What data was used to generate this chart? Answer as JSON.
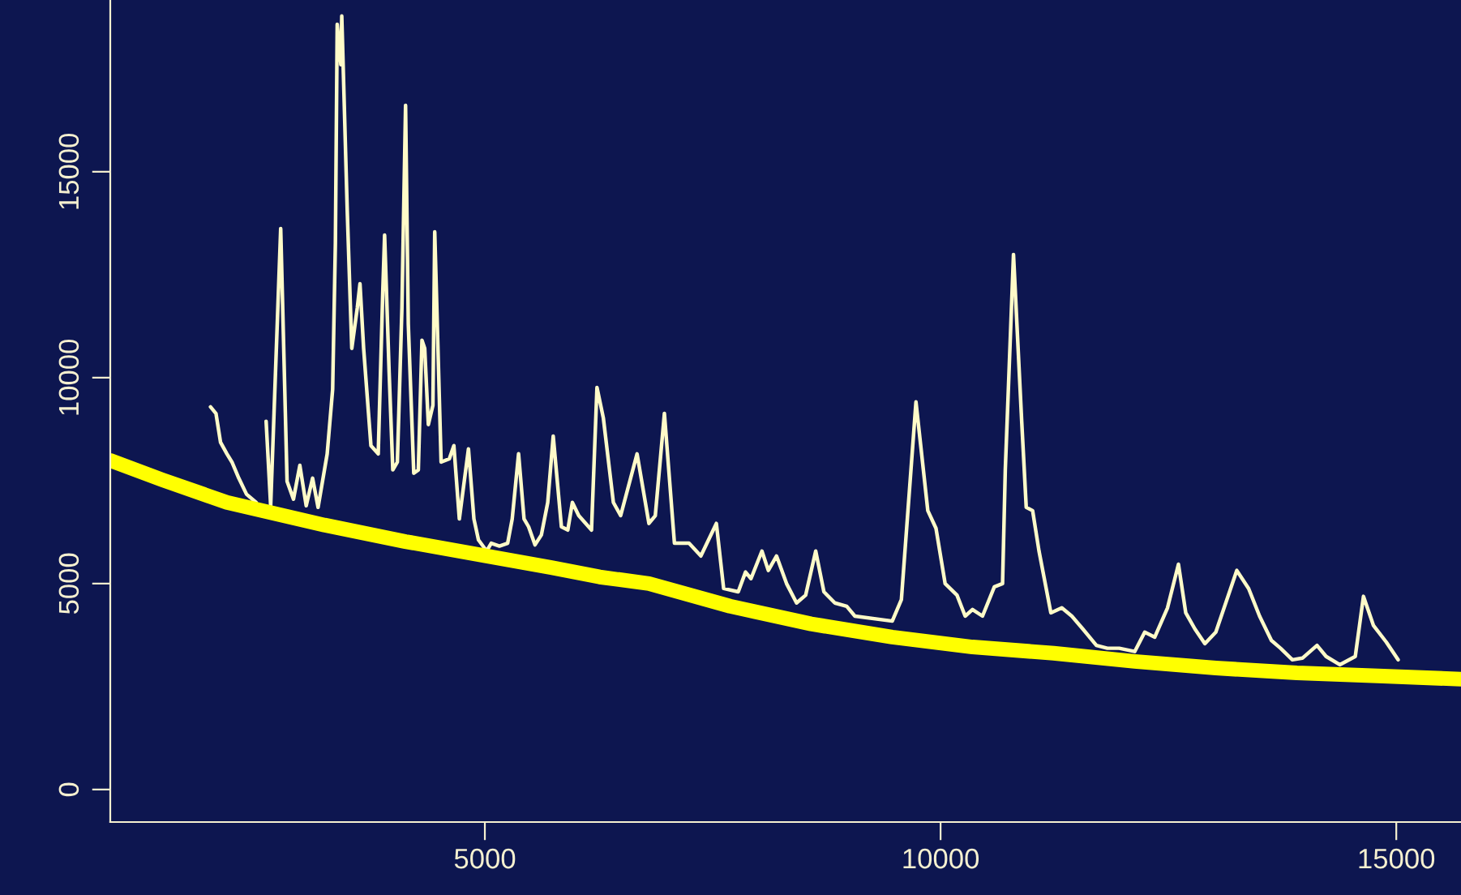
{
  "chart_data": {
    "type": "line",
    "xlim": [
      890,
      15710
    ],
    "ylim": [
      -790,
      19170
    ],
    "xticks": [
      5000,
      10000,
      15000
    ],
    "yticks": [
      0,
      5000,
      10000,
      15000
    ],
    "grid": false,
    "legend": false,
    "series": [
      {
        "color": "#fffbc8",
        "x": [
          1990,
          2050,
          2100,
          2170,
          2225,
          2300,
          2385,
          2490,
          2560,
          2600,
          2650,
          2760,
          2830,
          2900,
          2970,
          3040,
          3110,
          3170,
          3270,
          3330,
          3360,
          3380,
          3420,
          3430,
          3490,
          3540,
          3600,
          3630,
          3670,
          3750,
          3830,
          3880,
          3900,
          3950,
          3990,
          4040,
          4090,
          4130,
          4160,
          4220,
          4270,
          4310,
          4340,
          4380,
          4430,
          4450,
          4520,
          4610,
          4660,
          4720,
          4820,
          4880,
          4930,
          5020,
          5070,
          5160,
          5250,
          5300,
          5370,
          5430,
          5480,
          5550,
          5620,
          5690,
          5750,
          5840,
          5910,
          5960,
          6030,
          6170,
          6230,
          6300,
          6410,
          6490,
          6670,
          6800,
          6870,
          6970,
          7080,
          7240,
          7370,
          7540,
          7620,
          7780,
          7860,
          7920,
          8040,
          8110,
          8200,
          8310,
          8420,
          8520,
          8630,
          8720,
          8840,
          8970,
          9060,
          9470,
          9570,
          9730,
          9860,
          9950,
          10050,
          10180,
          10270,
          10350,
          10460,
          10590,
          10680,
          10710,
          10800,
          10890,
          10940,
          11010,
          11080,
          11210,
          11330,
          11440,
          11560,
          11710,
          11830,
          11960,
          12130,
          12240,
          12350,
          12490,
          12610,
          12690,
          12790,
          12900,
          13020,
          13250,
          13380,
          13500,
          13630,
          13730,
          13860,
          13970,
          14130,
          14230,
          14380,
          14550,
          14640,
          14750,
          14890,
          15020
        ],
        "values": [
          9290,
          9130,
          8430,
          8150,
          7950,
          7560,
          7170,
          6970,
          null,
          8940,
          6890,
          13620,
          7480,
          7050,
          7870,
          6890,
          7560,
          6850,
          8150,
          9720,
          13270,
          18580,
          17600,
          18780,
          14060,
          10710,
          11690,
          12280,
          10710,
          8350,
          8150,
          12090,
          13460,
          10120,
          7760,
          7950,
          11690,
          16610,
          11300,
          7680,
          7760,
          10910,
          10710,
          8860,
          9330,
          13540,
          7950,
          8030,
          8350,
          6570,
          8270,
          6570,
          6060,
          5790,
          5980,
          5910,
          5980,
          6570,
          8150,
          6570,
          6380,
          5940,
          6180,
          6970,
          8580,
          6380,
          6300,
          6970,
          6650,
          6300,
          9760,
          9020,
          6970,
          6650,
          8150,
          6460,
          6650,
          9130,
          5980,
          5980,
          5670,
          6460,
          4880,
          4800,
          5280,
          5120,
          5790,
          5320,
          5670,
          5000,
          4530,
          4720,
          5790,
          4800,
          4530,
          4450,
          4210,
          4090,
          4610,
          9410,
          6770,
          6340,
          5000,
          4720,
          4210,
          4370,
          4210,
          4920,
          5000,
          7760,
          12990,
          8940,
          6850,
          6770,
          5790,
          4290,
          4410,
          4210,
          3900,
          3500,
          3430,
          3430,
          3350,
          3820,
          3700,
          4410,
          5470,
          4290,
          3900,
          3540,
          3820,
          5320,
          4880,
          4210,
          3620,
          3430,
          3150,
          3190,
          3500,
          3230,
          3030,
          3230,
          4690,
          3980,
          3580,
          3150
        ]
      },
      {
        "color": "#ffff00",
        "x": [
          890,
          1460,
          2170,
          3240,
          4130,
          5020,
          5730,
          6260,
          6800,
          7690,
          8580,
          9470,
          10350,
          11240,
          12130,
          13020,
          13910,
          14800,
          15710
        ],
        "values": [
          7990,
          7520,
          6970,
          6420,
          6020,
          5670,
          5390,
          5160,
          5000,
          4450,
          4020,
          3700,
          3460,
          3310,
          3110,
          2950,
          2830,
          2760,
          2680
        ]
      }
    ]
  }
}
